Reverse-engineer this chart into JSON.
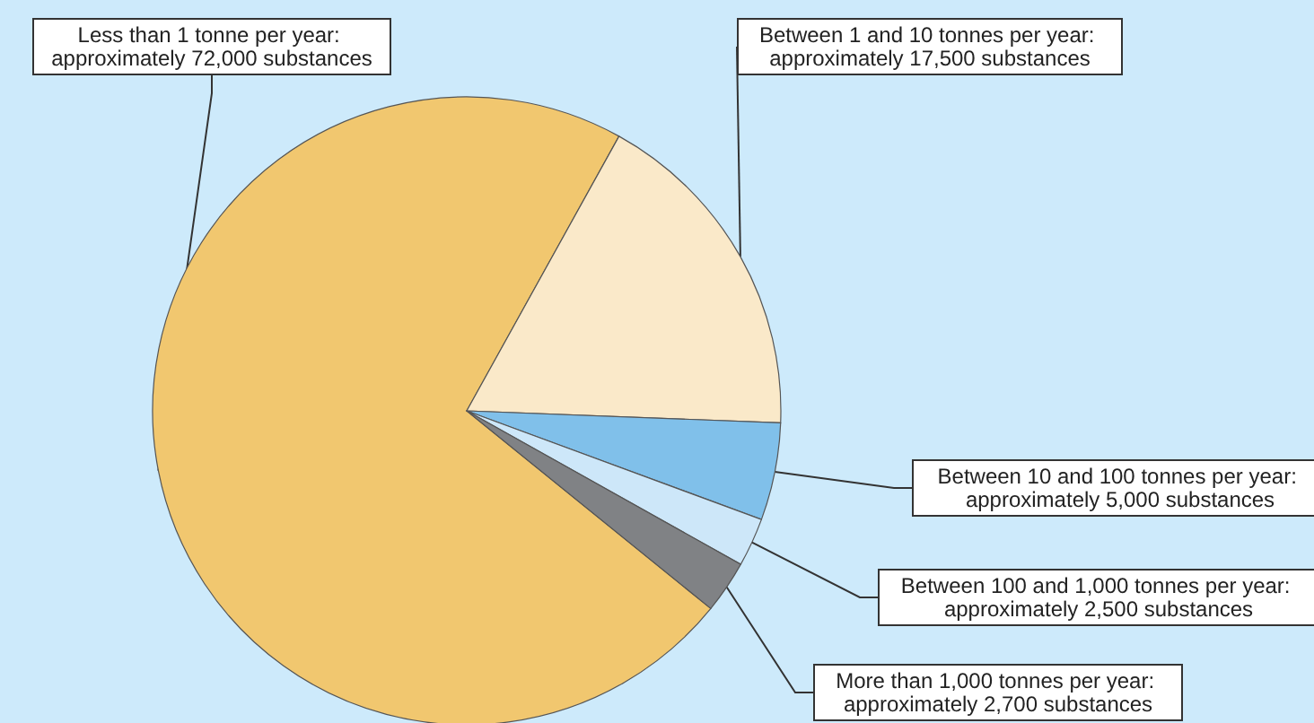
{
  "chart_data": {
    "type": "pie",
    "categories": [
      "Less than 1 tonne per year: approximately 72,000 substances",
      "Between 1 and 10 tonnes per year: approximately 17,500 substances",
      "Between 10 and 100 tonnes per year: approximately 5,000 substances",
      "Between 100 and 1,000 tonnes per year: approximately 2,500 substances",
      "More than 1,000 tonnes per year: approximately 2,700 substances"
    ],
    "values": [
      72000,
      17500,
      5000,
      2500,
      2700
    ],
    "colors": [
      "#f1c76f",
      "#fae9c9",
      "#80c0ea",
      "#cde7f9",
      "#808285"
    ],
    "legend": false
  }
}
